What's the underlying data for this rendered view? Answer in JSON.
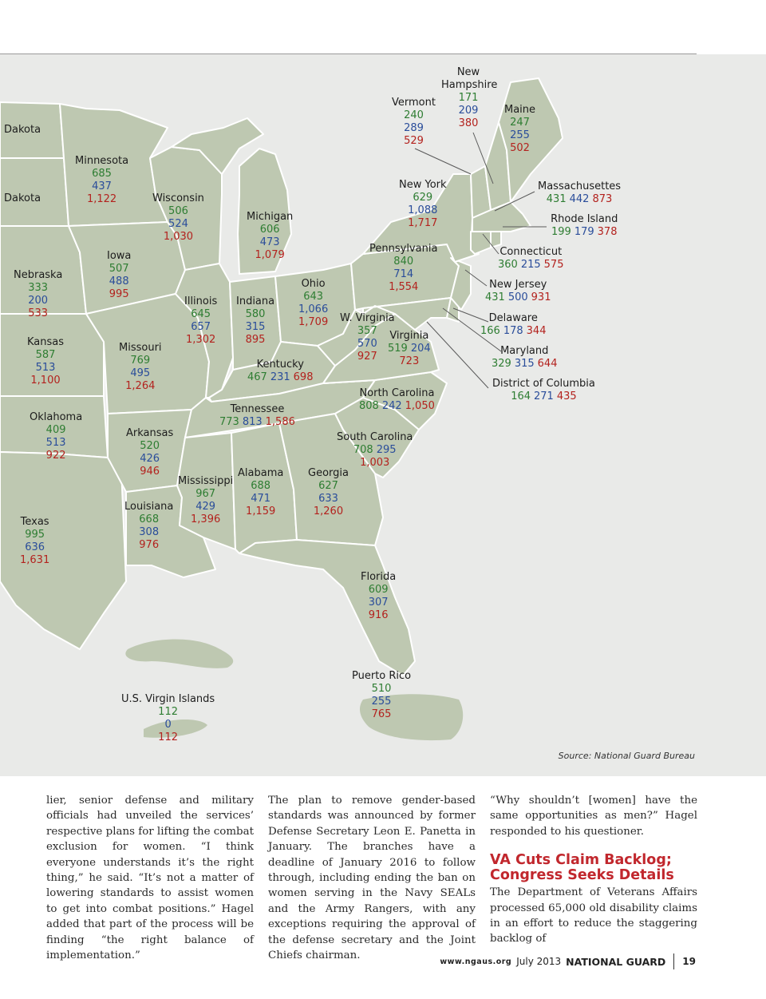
{
  "source": "Source: National Guard Bureau",
  "states": [
    {
      "name": "Dakota"
    },
    {
      "name": "Dakota"
    },
    {
      "name": "Minnesota",
      "values": [
        "685",
        "437",
        "1,122"
      ]
    },
    {
      "name": "Wisconsin",
      "values": [
        "506",
        "524",
        "1,030"
      ]
    },
    {
      "name": "Michigan",
      "values": [
        "606",
        "473",
        "1,079"
      ]
    },
    {
      "name": "Iowa",
      "values": [
        "507",
        "488",
        "995"
      ]
    },
    {
      "name": "Nebraska",
      "values": [
        "333",
        "200",
        "533"
      ]
    },
    {
      "name": "Illinois",
      "values": [
        "645",
        "657",
        "1,302"
      ]
    },
    {
      "name": "Indiana",
      "values": [
        "580",
        "315",
        "895"
      ]
    },
    {
      "name": "Ohio",
      "values": [
        "643",
        "1,066",
        "1,709"
      ]
    },
    {
      "name": "Kansas",
      "values": [
        "587",
        "513",
        "1,100"
      ]
    },
    {
      "name": "Missouri",
      "values": [
        "769",
        "495",
        "1,264"
      ]
    },
    {
      "name": "Kentucky",
      "values": [
        "467",
        "231",
        "698"
      ]
    },
    {
      "name": "W. Virginia",
      "values": [
        "357",
        "570",
        "927"
      ]
    },
    {
      "name": "Virginia",
      "values": [
        "519",
        "204",
        "723"
      ]
    },
    {
      "name": "Pennsylvania",
      "values": [
        "840",
        "714",
        "1,554"
      ]
    },
    {
      "name": "New York",
      "values": [
        "629",
        "1,088",
        "1,717"
      ]
    },
    {
      "name": "Vermont",
      "values": [
        "240",
        "289",
        "529"
      ]
    },
    {
      "name": "New Hampshire",
      "values": [
        "171",
        "209",
        "380"
      ]
    },
    {
      "name": "Maine",
      "values": [
        "247",
        "255",
        "502"
      ]
    },
    {
      "name": "Massachusettes",
      "values": [
        "431",
        "442",
        "873"
      ]
    },
    {
      "name": "Rhode Island",
      "values": [
        "199",
        "179",
        "378"
      ]
    },
    {
      "name": "Connecticut",
      "values": [
        "360",
        "215",
        "575"
      ]
    },
    {
      "name": "New Jersey",
      "values": [
        "431",
        "500",
        "931"
      ]
    },
    {
      "name": "Delaware",
      "values": [
        "166",
        "178",
        "344"
      ]
    },
    {
      "name": "Maryland",
      "values": [
        "329",
        "315",
        "644"
      ]
    },
    {
      "name": "District of Columbia",
      "values": [
        "164",
        "271",
        "435"
      ]
    },
    {
      "name": "North Carolina",
      "values": [
        "808",
        "242",
        "1,050"
      ]
    },
    {
      "name": "Tennessee",
      "values": [
        "773",
        "813",
        "1,586"
      ]
    },
    {
      "name": "Oklahoma",
      "values": [
        "409",
        "513",
        "922"
      ]
    },
    {
      "name": "Arkansas",
      "values": [
        "520",
        "426",
        "946"
      ]
    },
    {
      "name": "South Carolina",
      "values": [
        "708",
        "295",
        "1,003"
      ]
    },
    {
      "name": "Mississippi",
      "values": [
        "967",
        "429",
        "1,396"
      ]
    },
    {
      "name": "Alabama",
      "values": [
        "688",
        "471",
        "1,159"
      ]
    },
    {
      "name": "Georgia",
      "values": [
        "627",
        "633",
        "1,260"
      ]
    },
    {
      "name": "Louisiana",
      "values": [
        "668",
        "308",
        "976"
      ]
    },
    {
      "name": "Texas",
      "values": [
        "995",
        "636",
        "1,631"
      ]
    },
    {
      "name": "Florida",
      "values": [
        "609",
        "307",
        "916"
      ]
    },
    {
      "name": "Puerto Rico",
      "values": [
        "510",
        "255",
        "765"
      ]
    },
    {
      "name": "U.S. Virgin Islands",
      "values": [
        "112",
        "0",
        "112"
      ]
    }
  ],
  "colors": {
    "first": "#2e7d32",
    "second": "#2a4d9a",
    "total": "#b3221e",
    "land": "#bec8b1",
    "water": "#e9eae8"
  },
  "article": {
    "col1": "lier, senior defense and military officials had unveiled the services’ respective plans for lifting the combat exclusion for women. “I think everyone understands it’s the right thing,” he said. “It’s not a matter of lowering standards to assist women to get into combat positions.” Hagel added that part of the process will be finding “the right balance of implementation.”",
    "col2": "The plan to remove gender-based standards was announced by former Defense Secretary Leon E. Panetta in January. The branches have a deadline of January 2016 to follow through, including ending the ban on women serving in the Navy SEALs and the Army Rangers, with any exceptions requiring the approval of the defense secretary and the Joint Chiefs chairman.",
    "col3": "“Why shouldn’t [women] have the same opportunities as men?” Hagel responded to his questioner.",
    "headline": "VA Cuts Claim Backlog; Congress Seeks Details",
    "col3b": "The Department of Veterans Affairs processed 65,000 old disability claims in an effort to reduce the staggering backlog of"
  },
  "footer": {
    "url": "www.ngaus.org",
    "date": "July 2013",
    "magazine": "NATIONAL GUARD",
    "page": "19"
  }
}
